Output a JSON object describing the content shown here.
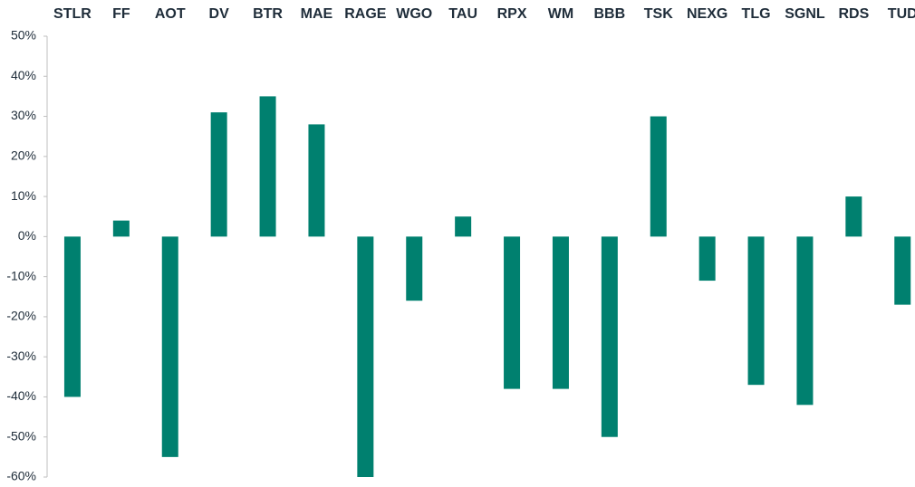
{
  "chart_data": {
    "type": "bar",
    "categories": [
      "STLR",
      "FF",
      "AOT",
      "DV",
      "BTR",
      "MAE",
      "RAGE",
      "WGO",
      "TAU",
      "RPX",
      "WM",
      "BBB",
      "TSK",
      "NEXG",
      "TLG",
      "SGNL",
      "RDS",
      "TUD"
    ],
    "values": [
      -40,
      4,
      -55,
      31,
      35,
      28,
      -60,
      -16,
      5,
      -38,
      -38,
      -50,
      30,
      -11,
      -37,
      -42,
      10,
      -17
    ],
    "color": "#00806f",
    "ylim": [
      -60,
      50
    ],
    "yticks": [
      {
        "value": 50,
        "label": "50%"
      },
      {
        "value": 40,
        "label": "40%"
      },
      {
        "value": 30,
        "label": "30%"
      },
      {
        "value": 20,
        "label": "20%"
      },
      {
        "value": 10,
        "label": "10%"
      },
      {
        "value": 0,
        "label": "0%"
      },
      {
        "value": -10,
        "label": "-10%"
      },
      {
        "value": -20,
        "label": "-20%"
      },
      {
        "value": -30,
        "label": "-30%"
      },
      {
        "value": -40,
        "label": "-40%"
      },
      {
        "value": -50,
        "label": "-50%"
      },
      {
        "value": -60,
        "label": "-60%"
      }
    ],
    "grid": false
  }
}
